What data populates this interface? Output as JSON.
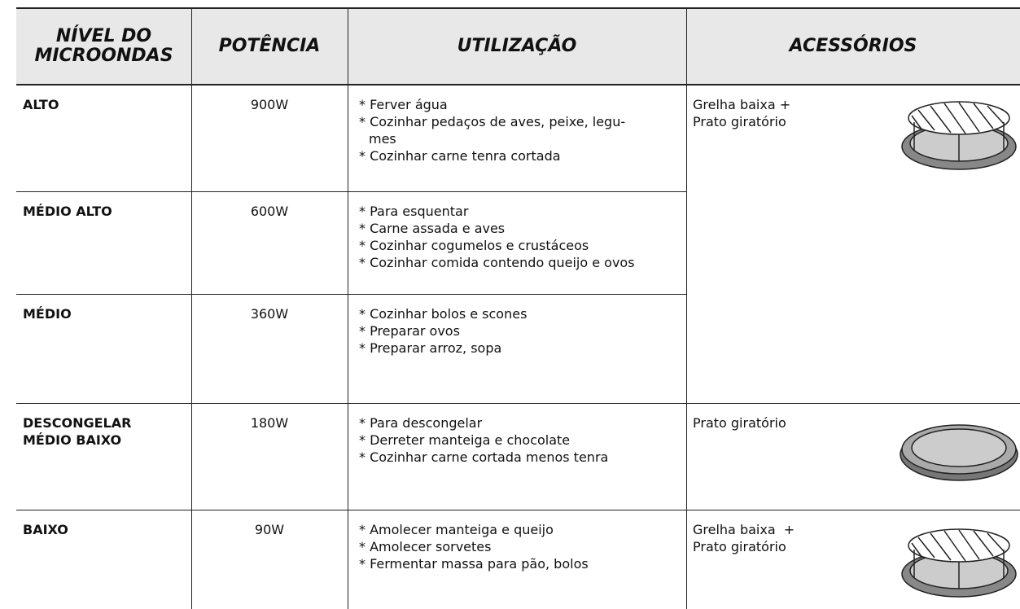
{
  "header": [
    "NÍVEL DO\nMICROONDAS",
    "POTÊNCIA",
    "UTILIZAÇÃO",
    "ACESSÓRIOS"
  ],
  "rows": [
    {
      "level": "ALTO",
      "power": "900W",
      "usage": [
        "* Ferver água",
        "* Cozinhar pedaços de aves, peixe, legu-",
        "mes",
        "* Cozinhar carne tenra cortada"
      ]
    },
    {
      "level": "MÉDIO ALTO",
      "power": "600W",
      "usage": [
        "* Para esquentar",
        "* Carne assada e aves",
        "* Cozinhar cogumelos e crustáceos",
        "* Cozinhar comida contendo queijo e ovos"
      ]
    },
    {
      "level": "MÉDIO",
      "power": "360W",
      "usage": [
        "* Cozinhar bolos e scones",
        "* Preparar ovos",
        "* Preparar arroz, sopa"
      ]
    },
    {
      "level": "DESCONGELAR\nMÉDIO BAIXO",
      "power": "180W",
      "usage": [
        "* Para descongelar",
        "* Derreter manteiga e chocolate",
        "* Cozinhar carne cortada menos tenra"
      ]
    },
    {
      "level": "BAIXO",
      "power": "90W",
      "usage": [
        "* Amolecer manteiga e queijo",
        "* Amolecer sorvetes",
        "* Fermentar massa para pão, bolos"
      ]
    }
  ],
  "accessories": [
    {
      "rows": [
        0,
        2
      ],
      "lines": [
        "Grelha baixa +",
        "Prato giratório"
      ]
    },
    {
      "rows": [
        3,
        3
      ],
      "lines": [
        "Prato giratório"
      ]
    },
    {
      "rows": [
        4,
        4
      ],
      "lines": [
        "Grelha baixa  +",
        "Prato giratório"
      ]
    }
  ]
}
